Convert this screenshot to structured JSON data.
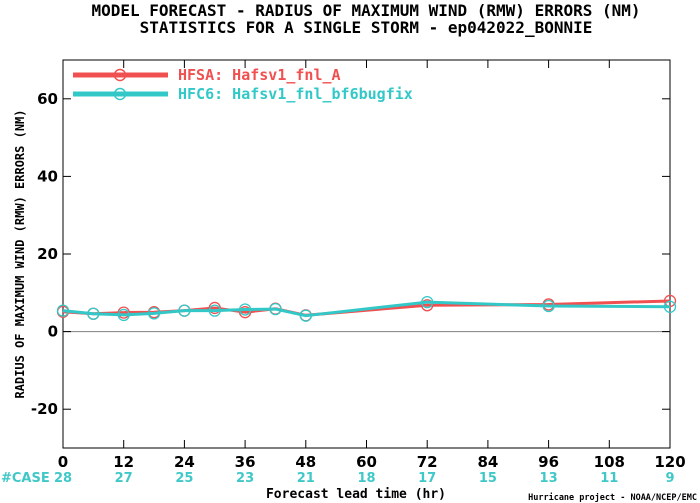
{
  "titles": {
    "line1": "MODEL FORECAST - RADIUS OF MAXIMUM WIND (RMW) ERRORS (NM)",
    "line2": "STATISTICS FOR A SINGLE STORM - ep042022_BONNIE"
  },
  "footer": {
    "case_label": "#CASE",
    "credit": "Hurricane project - NOAA/NCEP/EMC"
  },
  "colors": {
    "case_label": "#40c8c8",
    "case_counts": "#40c8c8",
    "axis": "#000000",
    "zero_line": "#808080"
  },
  "chart_data": {
    "type": "line",
    "title": "MODEL FORECAST - RADIUS OF MAXIMUM WIND (RMW) ERRORS (NM)",
    "subtitle": "STATISTICS FOR A SINGLE STORM - ep042022_BONNIE",
    "xlabel": "Forecast lead time (hr)",
    "ylabel": "RADIUS OF MAXIMUM WIND (RMW) ERRORS (NM)",
    "xlim": [
      0,
      120
    ],
    "ylim": [
      -30,
      70
    ],
    "x_ticks": [
      0,
      12,
      24,
      36,
      48,
      60,
      72,
      84,
      96,
      108,
      120
    ],
    "y_ticks": [
      -20,
      0,
      20,
      40,
      60
    ],
    "grid": false,
    "legend_position": "top-left",
    "case_counts": [
      28,
      27,
      25,
      23,
      21,
      18,
      17,
      15,
      13,
      11,
      9
    ],
    "series": [
      {
        "name": "HFSA: Hafsv1_fnl_A",
        "color": "#f05050",
        "points": [
          [
            0,
            5.1
          ],
          [
            6,
            4.6
          ],
          [
            12,
            4.9
          ],
          [
            18,
            5.0
          ],
          [
            24,
            5.4
          ],
          [
            30,
            6.1
          ],
          [
            36,
            5.0
          ],
          [
            42,
            5.9
          ],
          [
            48,
            4.2
          ],
          [
            72,
            6.8
          ],
          [
            96,
            7.0
          ],
          [
            120,
            7.9
          ]
        ]
      },
      {
        "name": "HFC6: Hafsv1_fnl_bf6bugfix",
        "color": "#33c8c8",
        "points": [
          [
            0,
            5.4
          ],
          [
            6,
            4.6
          ],
          [
            12,
            4.3
          ],
          [
            18,
            4.7
          ],
          [
            24,
            5.4
          ],
          [
            30,
            5.4
          ],
          [
            36,
            5.7
          ],
          [
            42,
            5.8
          ],
          [
            48,
            4.1
          ],
          [
            72,
            7.6
          ],
          [
            96,
            6.6
          ],
          [
            120,
            6.4
          ]
        ]
      }
    ]
  }
}
